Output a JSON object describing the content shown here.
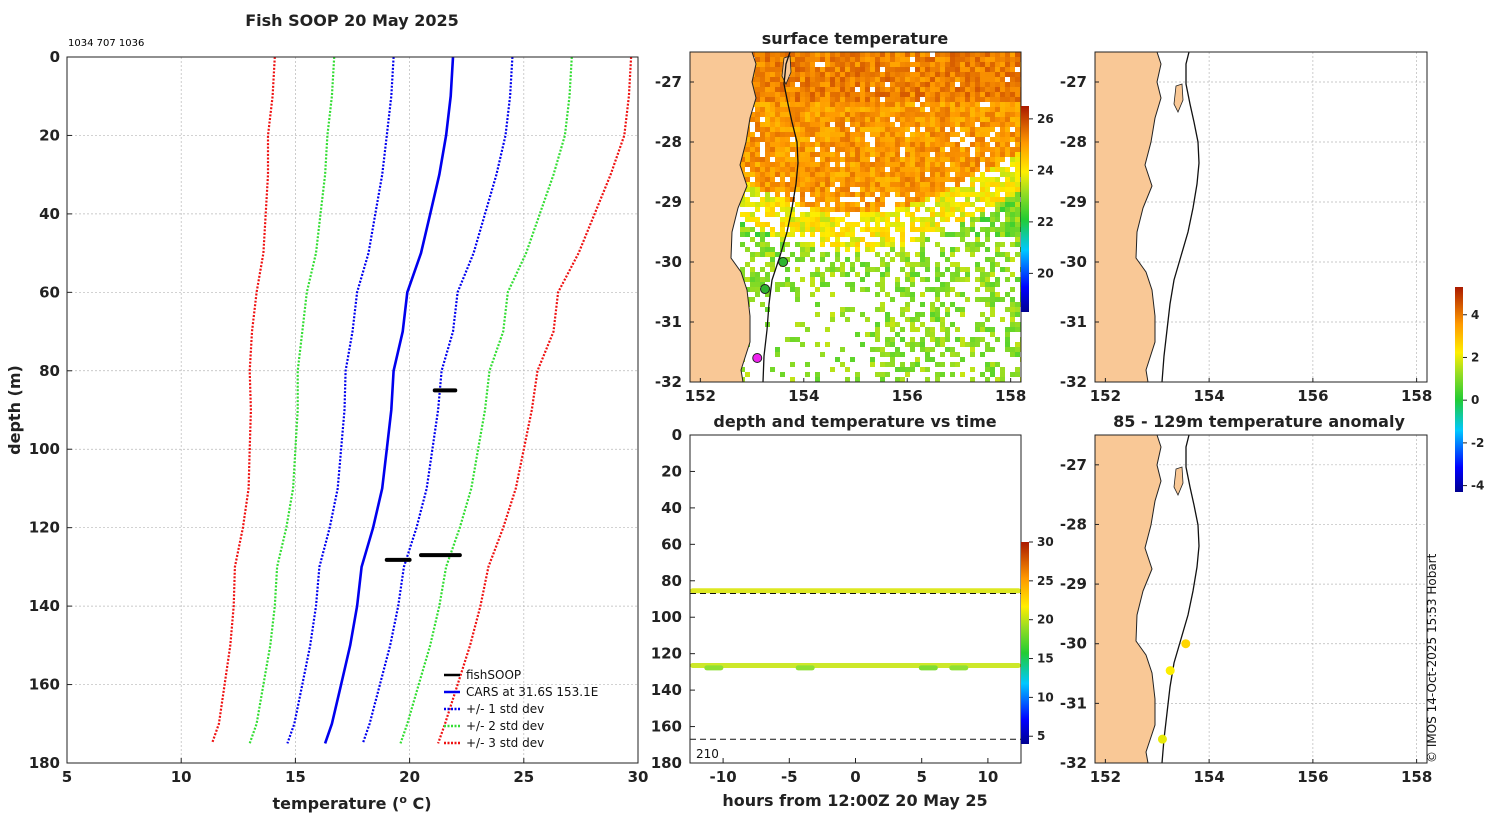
{
  "colors": {
    "land": "#f9c896",
    "cars": "#0000ee",
    "std1": "#0000ee",
    "std2": "#33dd33",
    "std3": "#ee1111",
    "obs": "#000000",
    "axis": "#222222"
  },
  "chart_data": [
    {
      "id": "profile",
      "type": "line",
      "title": "Fish SOOP 20 May 2025",
      "subtitle": "1034 707 1036",
      "xlabel": "temperature (",
      "xlabel_sup": "o",
      "xlabel_tail": " C)",
      "ylabel": "depth (m)",
      "xlim": [
        5,
        30
      ],
      "ylim": [
        0,
        180
      ],
      "xticks": [
        5,
        10,
        15,
        20,
        25,
        30
      ],
      "yticks": [
        0,
        20,
        40,
        60,
        80,
        100,
        120,
        140,
        160,
        180
      ],
      "depths": [
        0,
        10,
        20,
        30,
        40,
        50,
        60,
        70,
        80,
        90,
        100,
        110,
        120,
        130,
        140,
        150,
        160,
        170,
        175
      ],
      "mean": [
        21.9,
        21.8,
        21.6,
        21.3,
        20.9,
        20.5,
        19.9,
        19.7,
        19.3,
        19.2,
        19.0,
        18.8,
        18.4,
        17.9,
        17.7,
        17.4,
        17.0,
        16.6,
        16.3
      ],
      "std": [
        2.6,
        2.6,
        2.6,
        2.5,
        2.4,
        2.3,
        2.2,
        2.2,
        2.1,
        2.05,
        2.0,
        1.95,
        1.9,
        1.85,
        1.8,
        1.75,
        1.7,
        1.65,
        1.65
      ],
      "observations": [
        {
          "depth": 85.0,
          "temp_start": 21.1,
          "temp_end": 22.0
        },
        {
          "depth": 127.0,
          "temp_start": 20.5,
          "temp_end": 22.2
        },
        {
          "depth": 128.2,
          "temp_start": 19.0,
          "temp_end": 20.0
        }
      ],
      "legend": [
        "fishSOOP",
        "CARS at 31.6S 153.1E",
        "+/- 1 std dev",
        "+/- 2 std dev",
        "+/- 3 std dev"
      ],
      "legend_position": "bottom-right",
      "grid": true
    },
    {
      "id": "sst",
      "type": "heatmap",
      "title": "surface temperature",
      "xlim": [
        151.8,
        158.2
      ],
      "ylim": [
        -32,
        -26.5
      ],
      "xticks": [
        152,
        154,
        156,
        158
      ],
      "yticks": [
        -27,
        -28,
        -29,
        -30,
        -31,
        -32
      ],
      "colorbar_range": [
        18.5,
        26.5
      ],
      "colorbar_ticks": [
        26,
        24,
        22,
        20
      ],
      "markers": [
        {
          "lon": 153.6,
          "lat": -30.0,
          "color": "#2fb52f"
        },
        {
          "lon": 153.25,
          "lat": -30.45,
          "color": "#2fb52f"
        },
        {
          "lon": 153.1,
          "lat": -31.6,
          "color": "#ee22ee"
        }
      ]
    },
    {
      "id": "anomaly_map_top",
      "type": "scatter",
      "title": "",
      "xlim": [
        151.8,
        158.2
      ],
      "ylim": [
        -32,
        -26.5
      ],
      "xticks": [
        152,
        154,
        156,
        158
      ],
      "yticks": [
        -27,
        -28,
        -29,
        -30,
        -31,
        -32
      ]
    },
    {
      "id": "time_series",
      "type": "scatter",
      "title": "depth and temperature vs time",
      "xlabel": "hours from 12:00Z 20 May 25",
      "xlim": [
        -12.5,
        12.5
      ],
      "ylim": [
        0,
        180
      ],
      "xticks": [
        -10,
        -5,
        0,
        5,
        10
      ],
      "yticks": [
        0,
        20,
        40,
        60,
        80,
        100,
        120,
        140,
        160,
        180
      ],
      "dashed_depths": [
        87,
        167
      ],
      "bottom_label": "210",
      "bands": [
        {
          "depth": 85.5,
          "color": "#dde822",
          "from": -12.3,
          "to": 12.3
        },
        {
          "depth": 126.5,
          "color": "#cde82a",
          "from": -12.3,
          "to": 12.3
        }
      ],
      "blobs": [
        {
          "depth": 127.8,
          "hour": -10.7,
          "color": "#8fe033"
        },
        {
          "depth": 127.8,
          "hour": -3.8,
          "color": "#8fe033"
        },
        {
          "depth": 127.8,
          "hour": 5.5,
          "color": "#7edc33"
        },
        {
          "depth": 127.8,
          "hour": 7.8,
          "color": "#8fe033"
        }
      ],
      "colorbar_range": [
        4,
        30
      ],
      "colorbar_ticks": [
        30,
        25,
        20,
        15,
        10,
        5
      ]
    },
    {
      "id": "anomaly_map",
      "type": "scatter",
      "title": "85 - 129m temperature anomaly",
      "xlim": [
        151.8,
        158.2
      ],
      "ylim": [
        -32,
        -26.5
      ],
      "xticks": [
        152,
        154,
        156,
        158
      ],
      "yticks": [
        -27,
        -28,
        -29,
        -30,
        -31,
        -32
      ],
      "points": [
        {
          "lon": 153.55,
          "lat": -30.0,
          "anomaly": 2.6
        },
        {
          "lon": 153.25,
          "lat": -30.45,
          "anomaly": 2.2
        },
        {
          "lon": 153.1,
          "lat": -31.6,
          "anomaly": 2.0
        }
      ],
      "colorbar_range": [
        -4.3,
        5.3
      ],
      "colorbar_ticks": [
        4,
        2,
        0,
        -2,
        -4
      ]
    }
  ],
  "footer": {
    "credit": "© IMOS 14-Oct-2025 15:53 Hobart"
  }
}
